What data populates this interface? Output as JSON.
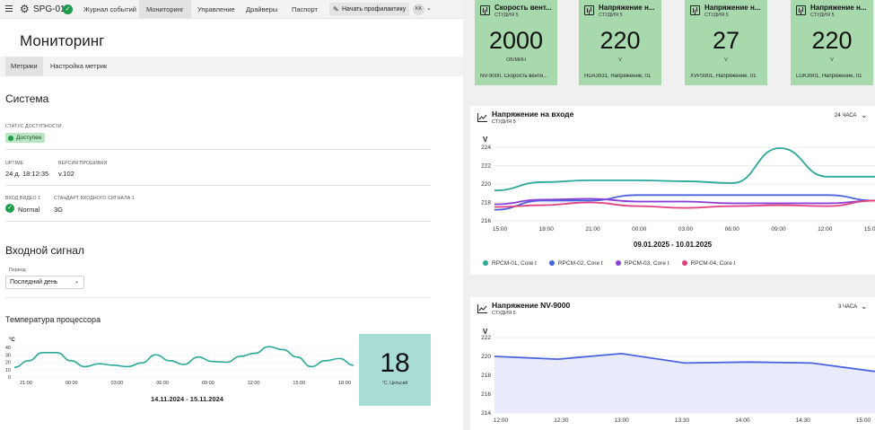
{
  "header": {
    "brand": "SPG-01",
    "nav": [
      "Журнал событий",
      "Мониторинг",
      "Управление",
      "Драйверы",
      "Паспорт"
    ],
    "active_nav": "Мониторинг",
    "maintenance_button": "Начать профилактику",
    "avatar_initials": "KK"
  },
  "page": {
    "title": "Мониторинг",
    "tabs": [
      "Метрики",
      "Настройка метрик"
    ]
  },
  "system": {
    "title": "Система",
    "status_label": "Статус доступности",
    "status_value": "Доступен",
    "uptime_label": "Uptime",
    "uptime_value": "24 д. 18:12:35",
    "firmware_label": "Версия прошивки",
    "firmware_value": "v.102",
    "video_label": "Вход видео 1",
    "video_value": "Normal",
    "standard_label": "Стандарт входного сигнала 1",
    "standard_value": "3G"
  },
  "input_signal": {
    "title": "Входной сигнал",
    "period_label": "Период",
    "period_value": "Последний день"
  },
  "cpu": {
    "title": "Температура процессора",
    "current_value": "18",
    "current_unit": "°C, Цельсий",
    "range": "14.11.2024 - 15.11.2024"
  },
  "tiles": [
    {
      "title": "Скорость вент...",
      "subtitle": "СТУДИЯ 5",
      "value": "2000",
      "unit": "ОБ/МИН",
      "footer": "NV-9000, Скорость венти..."
    },
    {
      "title": "Напряжение н...",
      "subtitle": "СТУДИЯ 5",
      "value": "220",
      "unit": "V",
      "footer": "HDA3931, Напряжение, 01"
    },
    {
      "title": "Напряжение н...",
      "subtitle": "СТУДИЯ 5",
      "value": "27",
      "unit": "V",
      "footer": "XVP3901, Напряжение, 01"
    },
    {
      "title": "Напряжение н...",
      "subtitle": "СТУДИЯ 5",
      "value": "220",
      "unit": "V",
      "footer": "LGK3901, Напряжение, 01"
    }
  ],
  "input_voltage_card": {
    "title": "Напряжение на входе",
    "subtitle": "СТУДИЯ 5",
    "period": "24 ЧАСА",
    "range": "09.01.2025 - 10.01.2025"
  },
  "nv_card": {
    "title": "Напряжение NV-9000",
    "subtitle": "СТУДИЯ 5",
    "period": "3 ЧАСА"
  },
  "colors": {
    "teal": "#2aa89a",
    "blue": "#4a63e0",
    "purple": "#8a3fd8",
    "pink": "#e0407e",
    "tile_green": "#a8d9ad",
    "tile_teal": "#a9dcd5"
  },
  "chart_data": [
    {
      "type": "line",
      "ylabel": "°C",
      "ylim": [
        0,
        40
      ],
      "yticks": [
        0,
        10,
        20,
        30,
        40
      ],
      "xticks": [
        "21:00",
        "00:00",
        "03:00",
        "06:00",
        "09:00",
        "12:00",
        "15:00",
        "18:00"
      ],
      "series": [
        {
          "values": [
            13,
            22,
            33,
            33,
            22,
            14,
            18,
            16,
            14,
            19,
            30,
            22,
            17,
            27,
            21,
            20,
            28,
            32,
            41,
            37,
            27,
            14,
            22,
            25,
            16
          ]
        }
      ]
    },
    {
      "type": "line",
      "ylabel": "V",
      "ylim": [
        216,
        224
      ],
      "yticks": [
        216,
        218,
        220,
        222,
        224
      ],
      "xticks": [
        "15:00",
        "18:00",
        "21:00",
        "00:00",
        "03:00",
        "06:00",
        "09:00",
        "12:00",
        "15:00"
      ],
      "series": [
        {
          "name": "RPCM-01, Core t",
          "values": [
            219.3,
            220.2,
            220.4,
            220.4,
            220.3,
            220.1,
            223.9,
            220.8,
            220.8
          ]
        },
        {
          "name": "RPCM-02, Core t",
          "values": [
            217.2,
            218.2,
            218.2,
            218.8,
            218.8,
            218.8,
            218.8,
            218.8,
            218.2
          ]
        },
        {
          "name": "RPCM-03, Core t",
          "values": [
            217.8,
            218.3,
            218.4,
            218.1,
            218.1,
            217.9,
            217.9,
            217.9,
            218.2
          ]
        },
        {
          "name": "RPCM-04, Core t",
          "values": [
            217.5,
            217.7,
            218.0,
            217.6,
            217.4,
            217.6,
            217.7,
            217.6,
            218.2
          ]
        }
      ]
    },
    {
      "type": "area",
      "ylabel": "V",
      "ylim": [
        214,
        222
      ],
      "yticks": [
        214,
        216,
        218,
        220,
        222
      ],
      "xticks": [
        "12:00",
        "12:30",
        "13:00",
        "13:30",
        "14:00",
        "14:30",
        "15:00"
      ],
      "series": [
        {
          "values": [
            220.0,
            219.7,
            220.3,
            219.3,
            219.4,
            219.3,
            218.4
          ]
        }
      ]
    }
  ]
}
